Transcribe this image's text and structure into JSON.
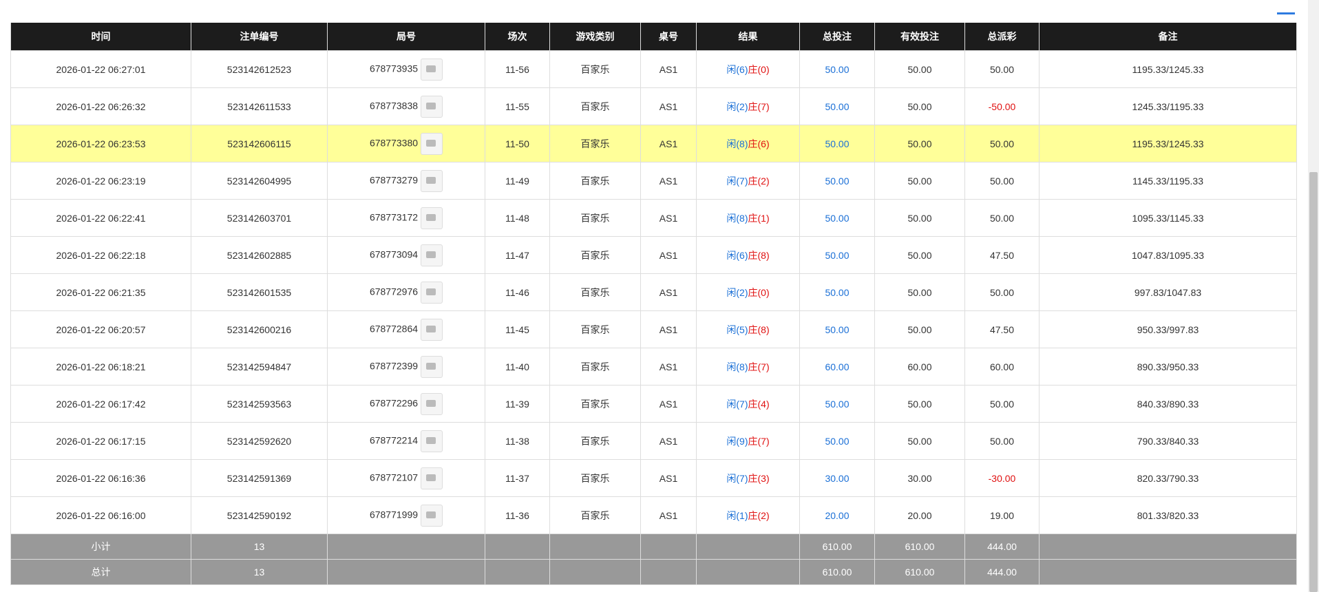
{
  "table": {
    "headers": [
      "时间",
      "注单编号",
      "局号",
      "场次",
      "游戏类别",
      "桌号",
      "结果",
      "总投注",
      "有效投注",
      "总派彩",
      "备注"
    ],
    "highlighted_row": 2,
    "rows": [
      {
        "time": "2026-01-22 06:27:01",
        "bet_id": "523142612523",
        "round": "678773935",
        "session": "11-56",
        "game": "百家乐",
        "desk": "AS1",
        "player": "闲(6)",
        "banker": "庄(0)",
        "total_bet": "50.00",
        "valid_bet": "50.00",
        "payout": "50.00",
        "note": "1195.33/1245.33"
      },
      {
        "time": "2026-01-22 06:26:32",
        "bet_id": "523142611533",
        "round": "678773838",
        "session": "11-55",
        "game": "百家乐",
        "desk": "AS1",
        "player": "闲(2)",
        "banker": "庄(7)",
        "total_bet": "50.00",
        "valid_bet": "50.00",
        "payout": "-50.00",
        "note": "1245.33/1195.33"
      },
      {
        "time": "2026-01-22 06:23:53",
        "bet_id": "523142606115",
        "round": "678773380",
        "session": "11-50",
        "game": "百家乐",
        "desk": "AS1",
        "player": "闲(8)",
        "banker": "庄(6)",
        "total_bet": "50.00",
        "valid_bet": "50.00",
        "payout": "50.00",
        "note": "1195.33/1245.33"
      },
      {
        "time": "2026-01-22 06:23:19",
        "bet_id": "523142604995",
        "round": "678773279",
        "session": "11-49",
        "game": "百家乐",
        "desk": "AS1",
        "player": "闲(7)",
        "banker": "庄(2)",
        "total_bet": "50.00",
        "valid_bet": "50.00",
        "payout": "50.00",
        "note": "1145.33/1195.33"
      },
      {
        "time": "2026-01-22 06:22:41",
        "bet_id": "523142603701",
        "round": "678773172",
        "session": "11-48",
        "game": "百家乐",
        "desk": "AS1",
        "player": "闲(8)",
        "banker": "庄(1)",
        "total_bet": "50.00",
        "valid_bet": "50.00",
        "payout": "50.00",
        "note": "1095.33/1145.33"
      },
      {
        "time": "2026-01-22 06:22:18",
        "bet_id": "523142602885",
        "round": "678773094",
        "session": "11-47",
        "game": "百家乐",
        "desk": "AS1",
        "player": "闲(6)",
        "banker": "庄(8)",
        "total_bet": "50.00",
        "valid_bet": "50.00",
        "payout": "47.50",
        "note": "1047.83/1095.33"
      },
      {
        "time": "2026-01-22 06:21:35",
        "bet_id": "523142601535",
        "round": "678772976",
        "session": "11-46",
        "game": "百家乐",
        "desk": "AS1",
        "player": "闲(2)",
        "banker": "庄(0)",
        "total_bet": "50.00",
        "valid_bet": "50.00",
        "payout": "50.00",
        "note": "997.83/1047.83"
      },
      {
        "time": "2026-01-22 06:20:57",
        "bet_id": "523142600216",
        "round": "678772864",
        "session": "11-45",
        "game": "百家乐",
        "desk": "AS1",
        "player": "闲(5)",
        "banker": "庄(8)",
        "total_bet": "50.00",
        "valid_bet": "50.00",
        "payout": "47.50",
        "note": "950.33/997.83"
      },
      {
        "time": "2026-01-22 06:18:21",
        "bet_id": "523142594847",
        "round": "678772399",
        "session": "11-40",
        "game": "百家乐",
        "desk": "AS1",
        "player": "闲(8)",
        "banker": "庄(7)",
        "total_bet": "60.00",
        "valid_bet": "60.00",
        "payout": "60.00",
        "note": "890.33/950.33"
      },
      {
        "time": "2026-01-22 06:17:42",
        "bet_id": "523142593563",
        "round": "678772296",
        "session": "11-39",
        "game": "百家乐",
        "desk": "AS1",
        "player": "闲(7)",
        "banker": "庄(4)",
        "total_bet": "50.00",
        "valid_bet": "50.00",
        "payout": "50.00",
        "note": "840.33/890.33"
      },
      {
        "time": "2026-01-22 06:17:15",
        "bet_id": "523142592620",
        "round": "678772214",
        "session": "11-38",
        "game": "百家乐",
        "desk": "AS1",
        "player": "闲(9)",
        "banker": "庄(7)",
        "total_bet": "50.00",
        "valid_bet": "50.00",
        "payout": "50.00",
        "note": "790.33/840.33"
      },
      {
        "time": "2026-01-22 06:16:36",
        "bet_id": "523142591369",
        "round": "678772107",
        "session": "11-37",
        "game": "百家乐",
        "desk": "AS1",
        "player": "闲(7)",
        "banker": "庄(3)",
        "total_bet": "30.00",
        "valid_bet": "30.00",
        "payout": "-30.00",
        "note": "820.33/790.33"
      },
      {
        "time": "2026-01-22 06:16:00",
        "bet_id": "523142590192",
        "round": "678771999",
        "session": "11-36",
        "game": "百家乐",
        "desk": "AS1",
        "player": "闲(1)",
        "banker": "庄(2)",
        "total_bet": "20.00",
        "valid_bet": "20.00",
        "payout": "19.00",
        "note": "801.33/820.33"
      }
    ],
    "footer": [
      {
        "label": "小计",
        "count": "13",
        "total_bet": "610.00",
        "valid_bet": "610.00",
        "payout": "444.00"
      },
      {
        "label": "总计",
        "count": "13",
        "total_bet": "610.00",
        "valid_bet": "610.00",
        "payout": "444.00"
      }
    ]
  }
}
